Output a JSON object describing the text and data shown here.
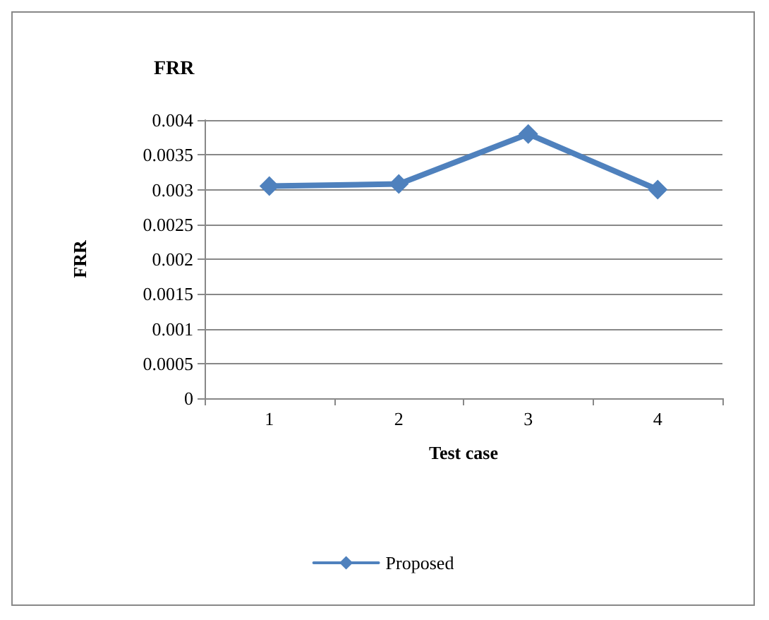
{
  "chart_data": {
    "type": "line",
    "title": "FRR",
    "xlabel": "Test case",
    "ylabel": "FRR",
    "categories": [
      "1",
      "2",
      "3",
      "4"
    ],
    "series": [
      {
        "name": "Proposed",
        "color": "#4f81bd",
        "values": [
          0.00305,
          0.00308,
          0.0038,
          0.003
        ]
      }
    ],
    "ylim": [
      0,
      0.004
    ],
    "yticks": [
      0,
      0.0005,
      0.001,
      0.0015,
      0.002,
      0.0025,
      0.003,
      0.0035,
      0.004
    ],
    "grid": "y",
    "legend": "bottom",
    "marker": "diamond",
    "line_style": "solid"
  }
}
